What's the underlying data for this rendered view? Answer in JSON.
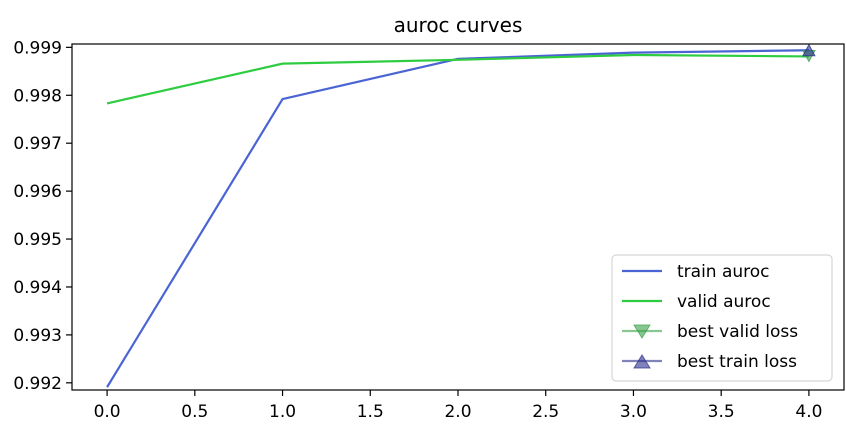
{
  "chart_data": {
    "type": "line",
    "title": "auroc curves",
    "xlabel": "",
    "ylabel": "",
    "xlim": [
      -0.2,
      4.2
    ],
    "ylim": [
      0.99185,
      0.99907
    ],
    "xticks": [
      0.0,
      0.5,
      1.0,
      1.5,
      2.0,
      2.5,
      3.0,
      3.5,
      4.0
    ],
    "xtick_labels": [
      "0.0",
      "0.5",
      "1.0",
      "1.5",
      "2.0",
      "2.5",
      "3.0",
      "3.5",
      "4.0"
    ],
    "yticks": [
      0.992,
      0.993,
      0.994,
      0.995,
      0.996,
      0.997,
      0.998,
      0.999
    ],
    "ytick_labels": [
      "0.992",
      "0.993",
      "0.994",
      "0.995",
      "0.996",
      "0.997",
      "0.998",
      "0.999"
    ],
    "grid": false,
    "legend_position": "lower-right",
    "series": [
      {
        "name": "train auroc",
        "type": "line",
        "color": "#4a64d4",
        "x": [
          0,
          1,
          2,
          3,
          4
        ],
        "y": [
          0.99191,
          0.99792,
          0.99876,
          0.99889,
          0.99894
        ]
      },
      {
        "name": "valid auroc",
        "type": "line",
        "color": "#2ecc40",
        "x": [
          0,
          1,
          2,
          3,
          4
        ],
        "y": [
          0.99783,
          0.99866,
          0.99874,
          0.99884,
          0.99881
        ]
      },
      {
        "name": "best valid loss",
        "type": "marker",
        "marker": "triangle-down",
        "color": "#3aa04a",
        "x": [
          4
        ],
        "y": [
          0.99883
        ]
      },
      {
        "name": "best train loss",
        "type": "marker",
        "marker": "triangle-up",
        "color": "#2b2f8c",
        "x": [
          4
        ],
        "y": [
          0.99893
        ]
      }
    ]
  }
}
